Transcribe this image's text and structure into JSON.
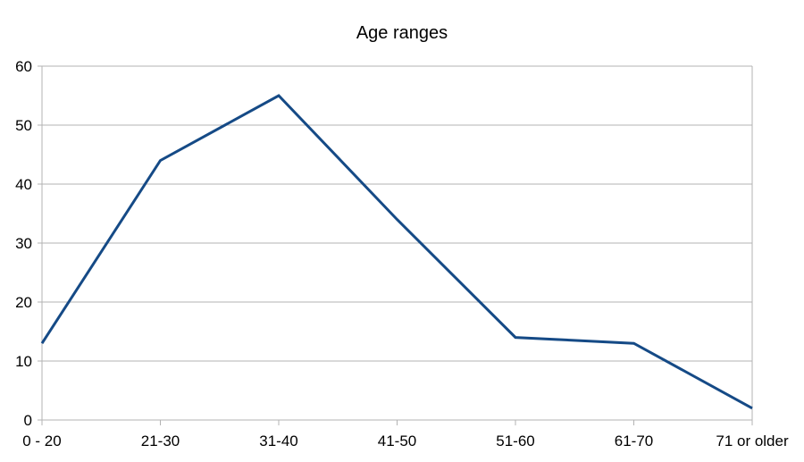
{
  "chart_data": {
    "type": "line",
    "title": "Age ranges",
    "categories": [
      "0 - 20",
      "21-30",
      "31-40",
      "41-50",
      "51-60",
      "61-70",
      "71 or older"
    ],
    "series": [
      {
        "values": [
          13,
          44,
          55,
          34,
          14,
          13,
          2
        ]
      }
    ],
    "xlabel": "",
    "ylabel": "",
    "ylim": [
      0,
      60
    ],
    "yticks": [
      0,
      10,
      20,
      30,
      40,
      50,
      60
    ],
    "grid": "horizontal",
    "legend": "none",
    "markers": "none",
    "colors": {
      "line": "#154a86",
      "grid": "#b3b3b3",
      "axis": "#b3b3b3",
      "text": "#000000",
      "background": "#ffffff"
    }
  }
}
